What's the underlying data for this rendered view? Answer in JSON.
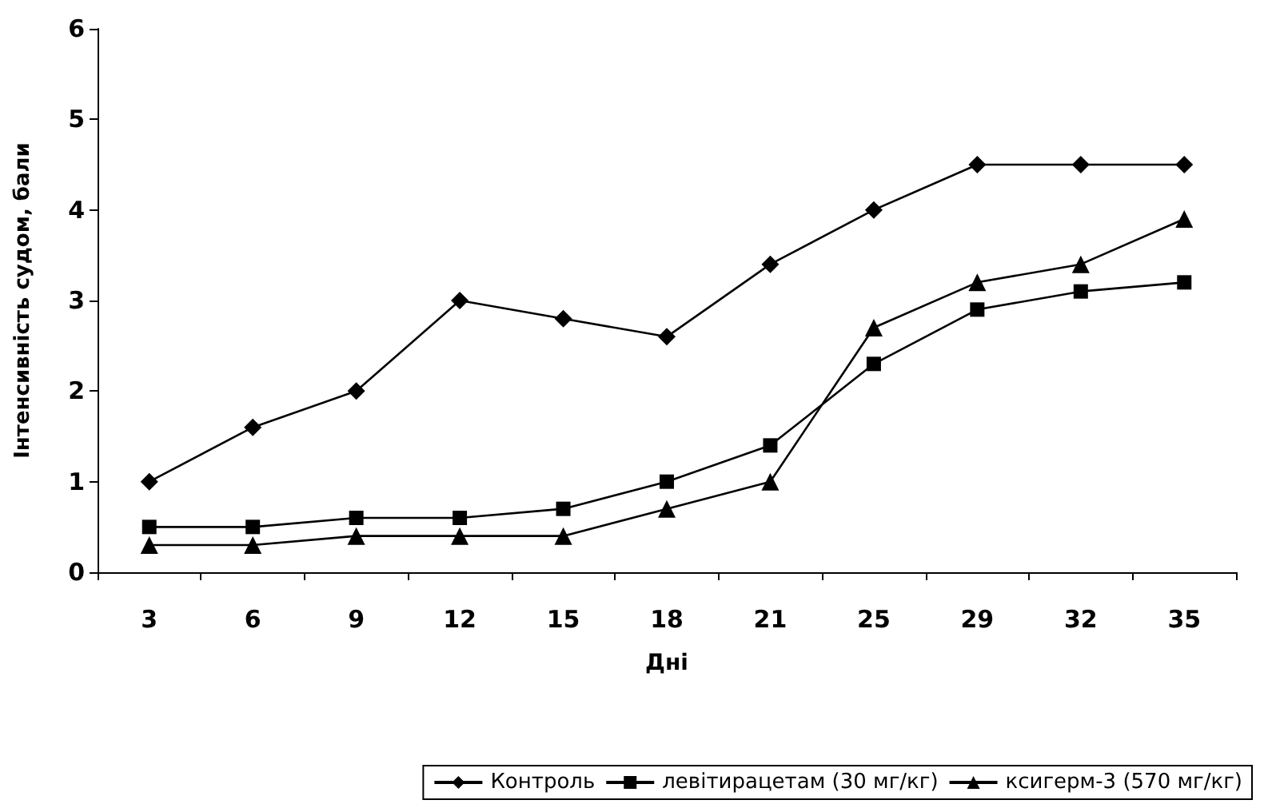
{
  "chart_data": {
    "type": "line",
    "xlabel": "Дні",
    "ylabel": "Інтенсивність судом, бали",
    "categories": [
      "3",
      "6",
      "9",
      "12",
      "15",
      "18",
      "21",
      "25",
      "29",
      "32",
      "35"
    ],
    "series": [
      {
        "name": "Контроль",
        "color": "#000000",
        "marker": "diamond",
        "values": [
          1.0,
          1.6,
          2.0,
          3.0,
          2.8,
          2.6,
          3.4,
          4.0,
          4.5,
          4.5,
          4.5
        ]
      },
      {
        "name": "левітирацетам (30 мг/кг)",
        "color": "#000000",
        "marker": "square",
        "values": [
          0.5,
          0.5,
          0.6,
          0.6,
          0.7,
          1.0,
          1.4,
          2.3,
          2.9,
          3.1,
          3.2
        ]
      },
      {
        "name": "ксигерм-3 (570 мг/кг)",
        "color": "#000000",
        "marker": "triangle",
        "values": [
          0.3,
          0.3,
          0.4,
          0.4,
          0.4,
          0.7,
          1.0,
          2.7,
          3.2,
          3.4,
          3.9
        ]
      }
    ],
    "ylim": [
      0,
      6
    ],
    "yticks": [
      0,
      1,
      2,
      3,
      4,
      5,
      6
    ],
    "grid": false,
    "legend": "bottom",
    "line_style": "solid"
  }
}
